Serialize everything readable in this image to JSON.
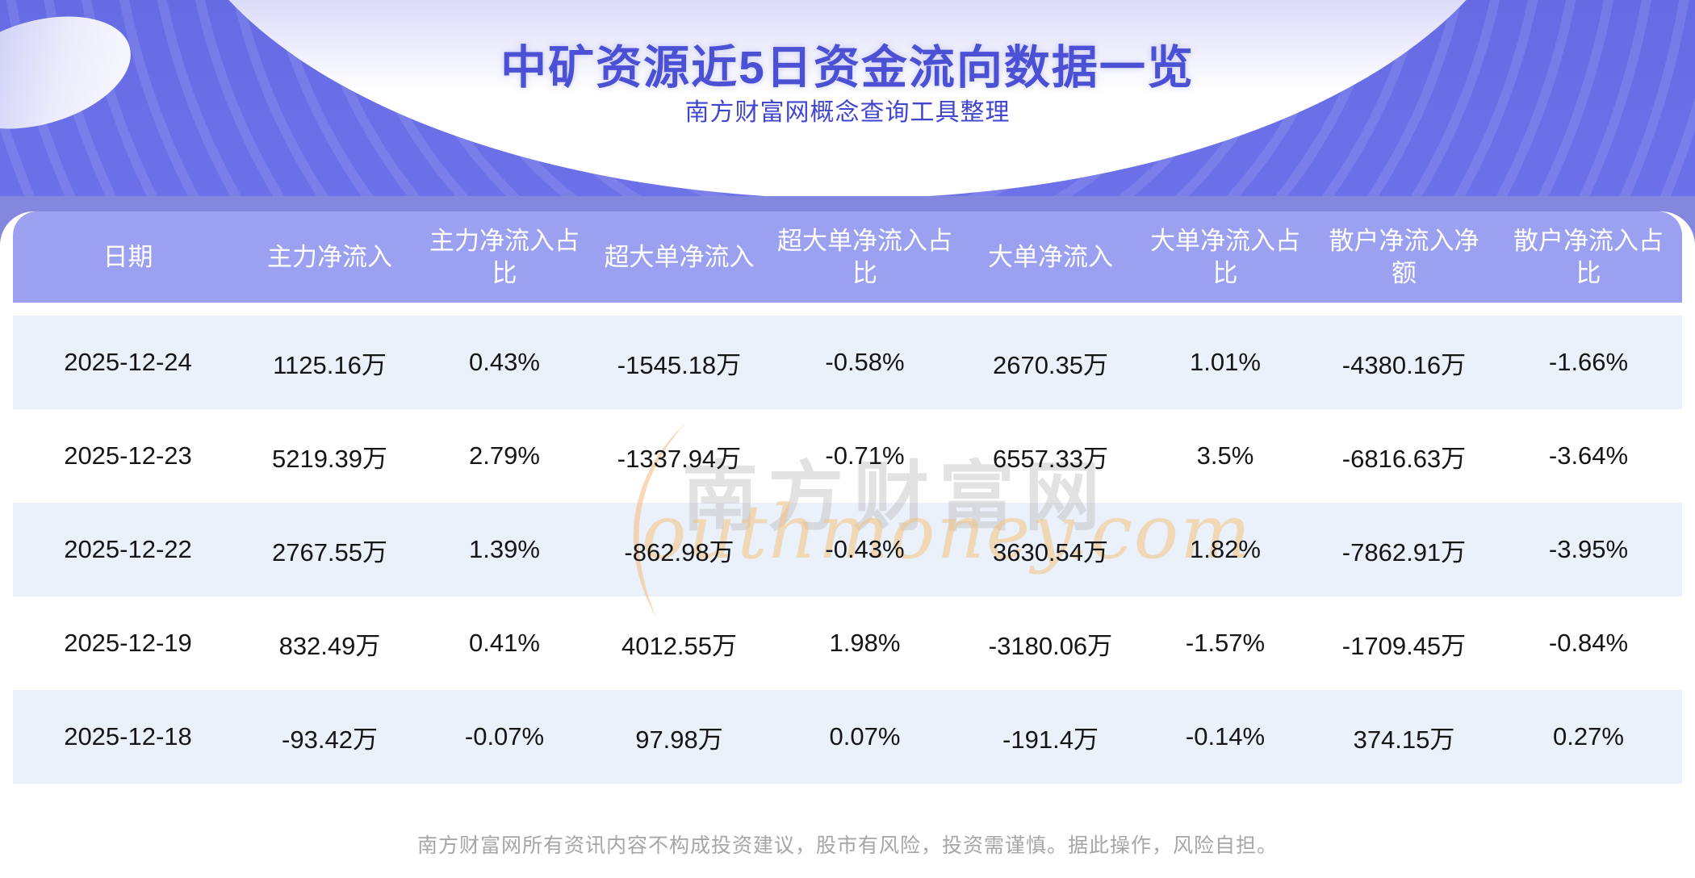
{
  "page": {
    "title": "中矿资源近5日资金流向数据一览",
    "subtitle": "南方财富网概念查询工具整理",
    "footer": "南方财富网所有资讯内容不构成投资建议，股市有风险，投资需谨慎。据此操作，风险自担。"
  },
  "watermark": {
    "text": "南方财富网",
    "script": "outhmoney.com"
  },
  "colors": {
    "banner_purple": "#666BE4",
    "band_purple": "#8487DE",
    "header_purple": "#9BA0F1",
    "row_alt_blue": "#EAF1FA",
    "title_blue": "#4B50D5",
    "watermark_orange": "#F4C17E"
  },
  "chart_data": {
    "type": "table",
    "title": "中矿资源近5日资金流向数据一览",
    "columns": [
      "日期",
      "主力净流入",
      "主力净流入占比",
      "超大单净流入",
      "超大单净流入占比",
      "大单净流入",
      "大单净流入占比",
      "散户净流入净额",
      "散户净流入占比"
    ],
    "rows": [
      [
        "2025-12-24",
        "1125.16万",
        "0.43%",
        "-1545.18万",
        "-0.58%",
        "2670.35万",
        "1.01%",
        "-4380.16万",
        "-1.66%"
      ],
      [
        "2025-12-23",
        "5219.39万",
        "2.79%",
        "-1337.94万",
        "-0.71%",
        "6557.33万",
        "3.5%",
        "-6816.63万",
        "-3.64%"
      ],
      [
        "2025-12-22",
        "2767.55万",
        "1.39%",
        "-862.98万",
        "-0.43%",
        "3630.54万",
        "1.82%",
        "-7862.91万",
        "-3.95%"
      ],
      [
        "2025-12-19",
        "832.49万",
        "0.41%",
        "4012.55万",
        "1.98%",
        "-3180.06万",
        "-1.57%",
        "-1709.45万",
        "-0.84%"
      ],
      [
        "2025-12-18",
        "-93.42万",
        "-0.07%",
        "97.98万",
        "0.07%",
        "-191.4万",
        "-0.14%",
        "374.15万",
        "0.27%"
      ]
    ]
  }
}
